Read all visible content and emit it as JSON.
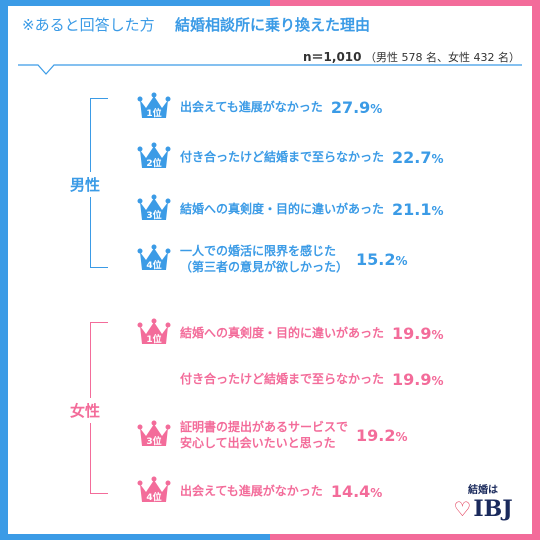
{
  "header": {
    "prefix": "※あると回答した方",
    "title": "結婚相談所に乗り換えた理由",
    "sample_n": "n＝1,010",
    "sample_detail": "（男性 578 名、女性 432 名）"
  },
  "colors": {
    "male": "#3b9be6",
    "female": "#f36c9a",
    "logo": "#1a2a5c"
  },
  "groups": {
    "male_label": "男性",
    "female_label": "女性"
  },
  "logo": {
    "top": "結婚は",
    "bottom": "IBJ"
  },
  "chart_data": [
    {
      "type": "bar",
      "title": "男性",
      "unit": "%",
      "items": [
        {
          "rank": "1位",
          "label": "出会えても進展がなかった",
          "value": 27.9
        },
        {
          "rank": "2位",
          "label": "付き合ったけど結婚まで至らなかった",
          "value": 22.7
        },
        {
          "rank": "3位",
          "label": "結婚への真剣度・目的に違いがあった",
          "value": 21.1
        },
        {
          "rank": "4位",
          "label": "一人での婚活に限界を感じた（第三者の意見が欲しかった）",
          "value": 15.2
        }
      ]
    },
    {
      "type": "bar",
      "title": "女性",
      "unit": "%",
      "items": [
        {
          "rank": "1位",
          "label": "結婚への真剣度・目的に違いがあった",
          "value": 19.9
        },
        {
          "rank": "",
          "label": "付き合ったけど結婚まで至らなかった",
          "value": 19.9
        },
        {
          "rank": "3位",
          "label": "証明書の提出があるサービスで安心して出会いたいと思った",
          "value": 19.2
        },
        {
          "rank": "4位",
          "label": "出会えても進展がなかった",
          "value": 14.4
        }
      ]
    }
  ],
  "display": {
    "male": [
      {
        "line1": "出会えても進展がなかった",
        "line2": "",
        "value": "27.9",
        "pct": "%"
      },
      {
        "line1": "付き合ったけど結婚まで至らなかった",
        "line2": "",
        "value": "22.7",
        "pct": "%"
      },
      {
        "line1": "結婚への真剣度・目的に違いがあった",
        "line2": "",
        "value": "21.1",
        "pct": "%"
      },
      {
        "line1": "一人での婚活に限界を感じた",
        "line2": "（第三者の意見が欲しかった）",
        "value": "15.2",
        "pct": "%"
      }
    ],
    "female": [
      {
        "line1": "結婚への真剣度・目的に違いがあった",
        "line2": "",
        "value": "19.9",
        "pct": "%"
      },
      {
        "line1": "付き合ったけど結婚まで至らなかった",
        "line2": "",
        "value": "19.9",
        "pct": "%"
      },
      {
        "line1": "証明書の提出があるサービスで",
        "line2": "安心して出会いたいと思った",
        "value": "19.2",
        "pct": "%"
      },
      {
        "line1": "出会えても進展がなかった",
        "line2": "",
        "value": "14.4",
        "pct": "%"
      }
    ]
  }
}
